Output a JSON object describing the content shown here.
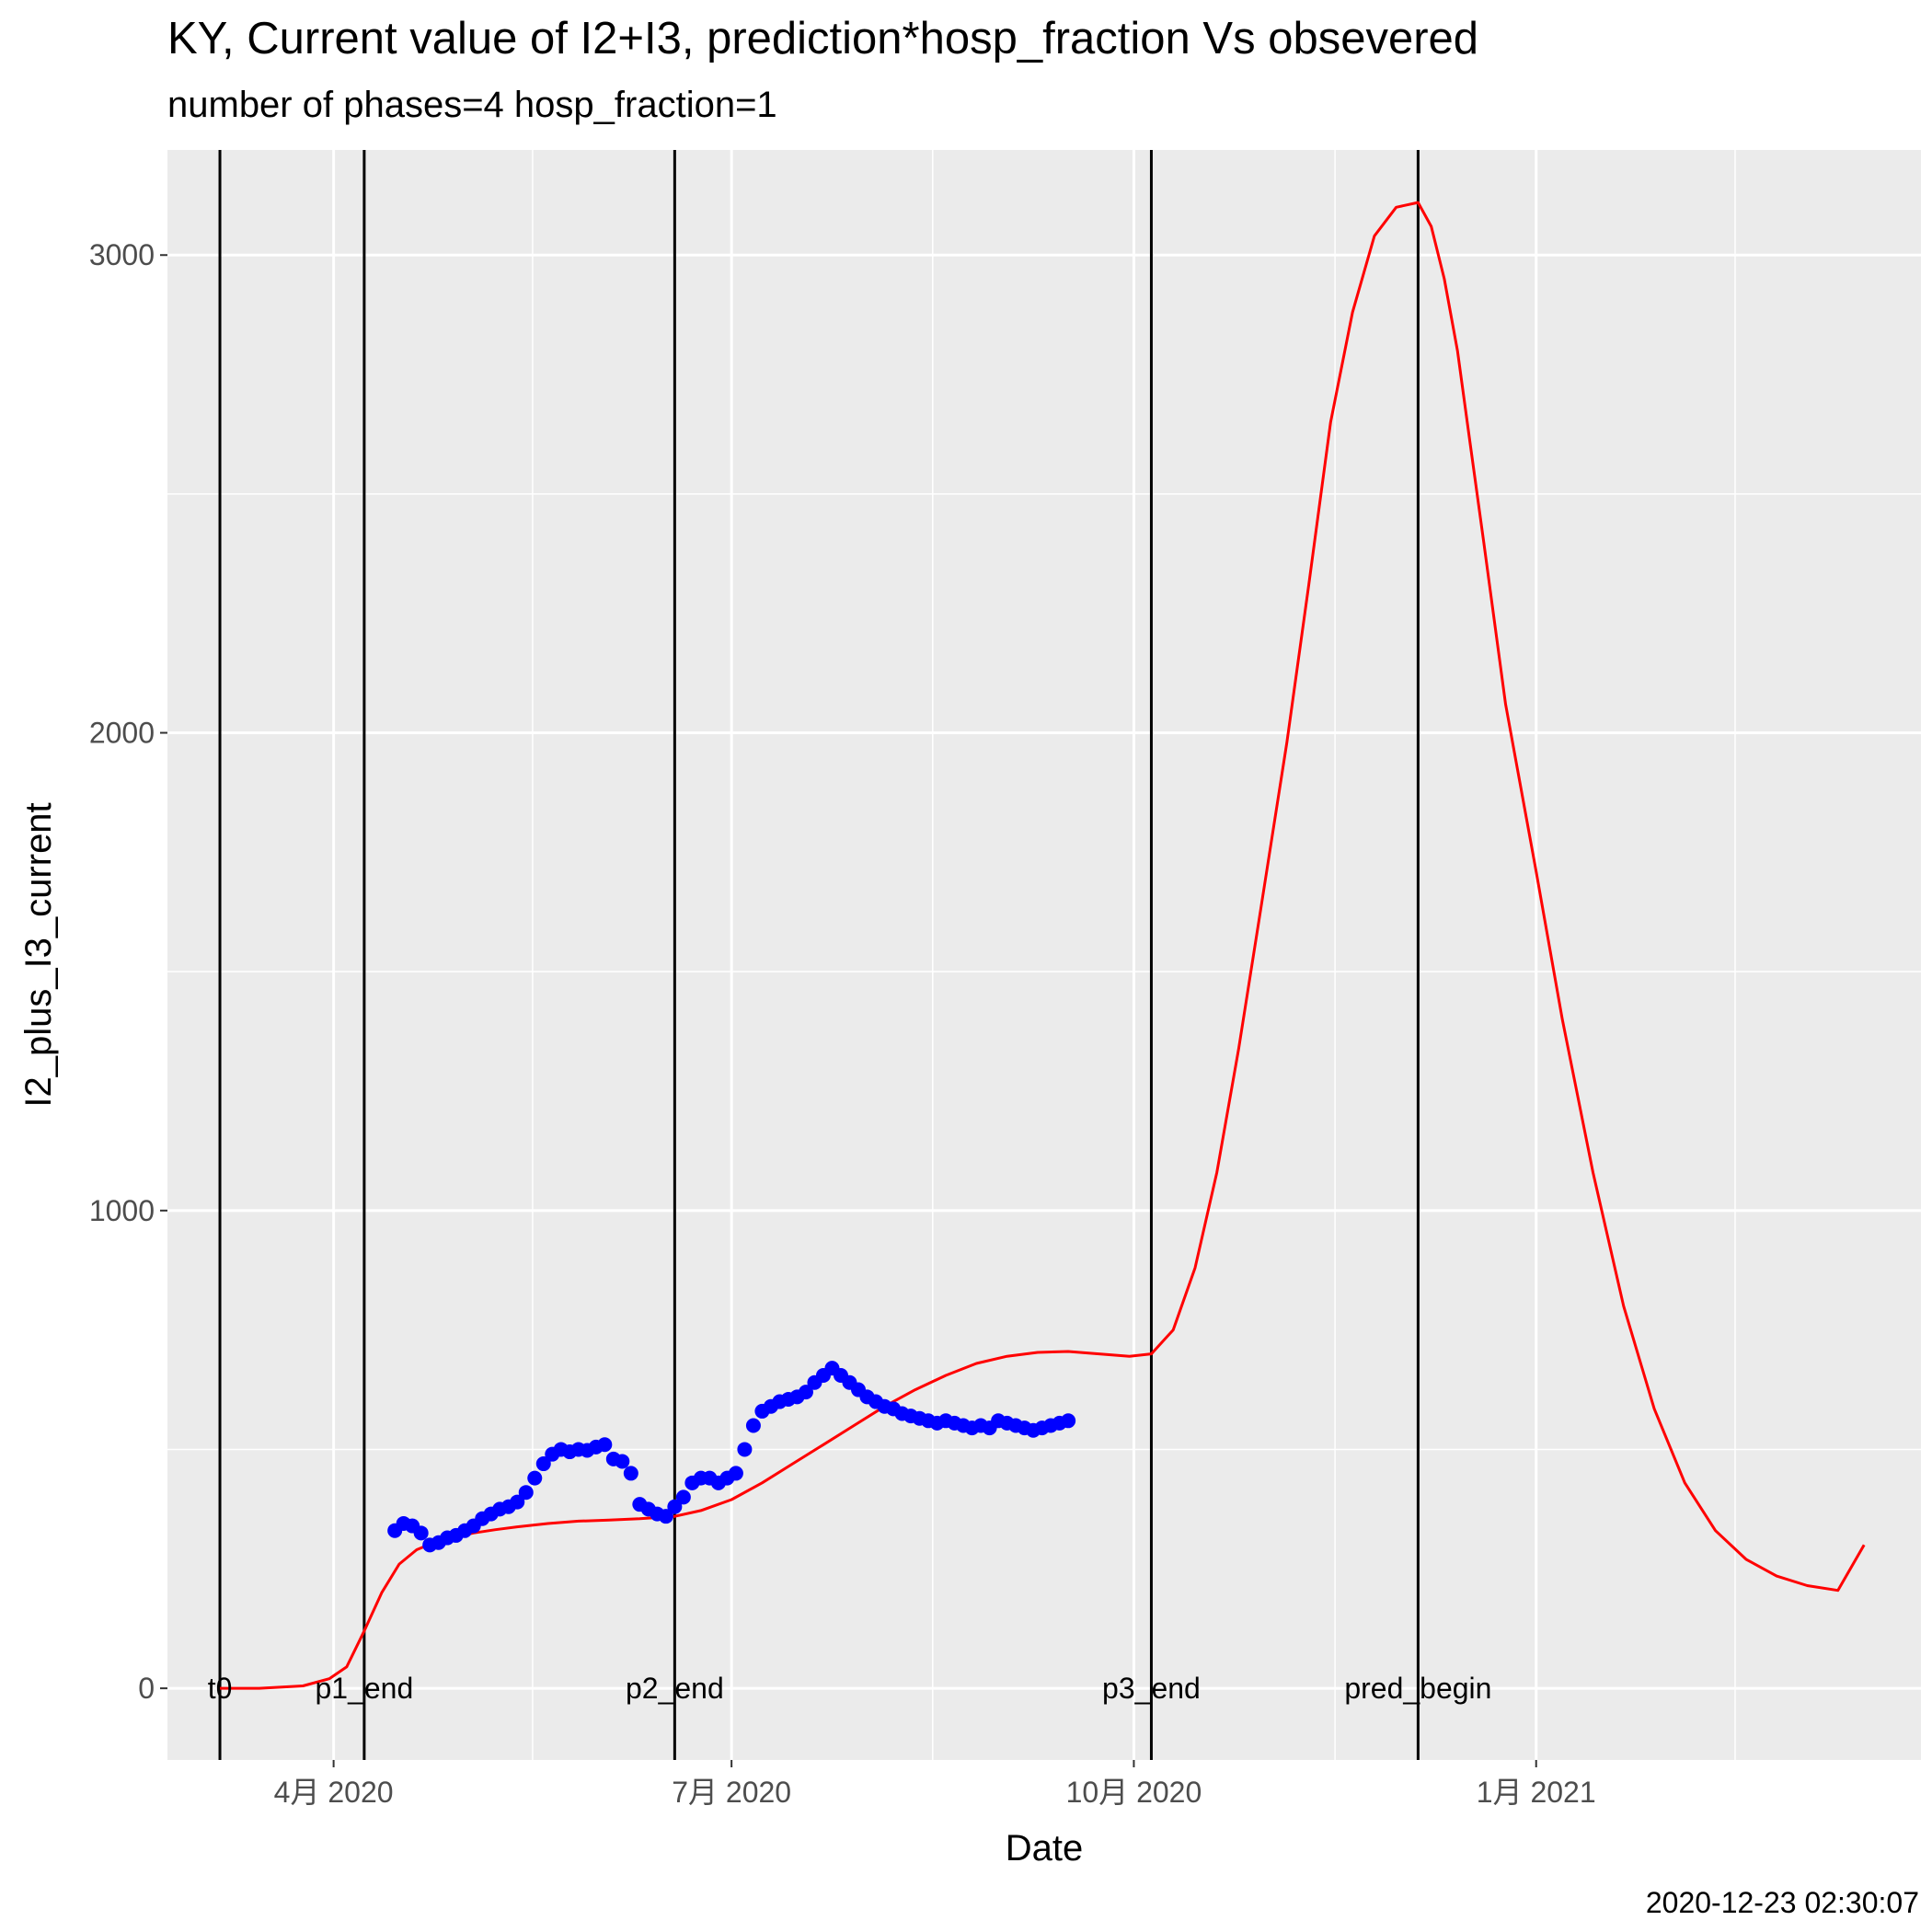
{
  "chart_data": {
    "type": "line",
    "title": "KY, Current value of I2+I3, prediction*hosp_fraction Vs obsevered",
    "subtitle": "number of phases=4   hosp_fraction=1",
    "xlabel": "Date",
    "ylabel": "I2_plus_I3_current",
    "footnote": "2020-12-23 02:30:07",
    "grid": true,
    "x_ticks": [
      {
        "date": "2020-04-01",
        "label": "4月 2020"
      },
      {
        "date": "2020-07-01",
        "label": "7月 2020"
      },
      {
        "date": "2020-10-01",
        "label": "10月 2020"
      },
      {
        "date": "2021-01-01",
        "label": "1月 2021"
      }
    ],
    "y_ticks": [
      {
        "value": 0,
        "label": "0"
      },
      {
        "value": 1000,
        "label": "1000"
      },
      {
        "value": 2000,
        "label": "2000"
      },
      {
        "value": 3000,
        "label": "3000"
      }
    ],
    "xlim": [
      "2020-02-23",
      "2021-03-30"
    ],
    "ylim": [
      -150,
      3220
    ],
    "vlines": [
      {
        "date": "2020-03-06",
        "label": "t0"
      },
      {
        "date": "2020-04-08",
        "label": "p1_end"
      },
      {
        "date": "2020-06-18",
        "label": "p2_end"
      },
      {
        "date": "2020-10-05",
        "label": "p3_end"
      },
      {
        "date": "2020-12-05",
        "label": "pred_begin"
      }
    ],
    "colors": {
      "panel": "#ebebeb",
      "grid": "#ffffff",
      "prediction": "#ff0000",
      "observed": "#0000ff",
      "vline": "#000000"
    },
    "series": [
      {
        "kind": "line",
        "color": "#ff0000",
        "x": [
          "2020-03-06",
          "2020-03-15",
          "2020-03-25",
          "2020-03-31",
          "2020-04-04",
          "2020-04-08",
          "2020-04-12",
          "2020-04-16",
          "2020-04-20",
          "2020-04-24",
          "2020-04-28",
          "2020-05-03",
          "2020-05-08",
          "2020-05-13",
          "2020-05-20",
          "2020-05-27",
          "2020-06-03",
          "2020-06-10",
          "2020-06-18",
          "2020-06-24",
          "2020-07-01",
          "2020-07-08",
          "2020-07-15",
          "2020-07-22",
          "2020-07-29",
          "2020-08-05",
          "2020-08-12",
          "2020-08-19",
          "2020-08-26",
          "2020-09-02",
          "2020-09-09",
          "2020-09-16",
          "2020-09-23",
          "2020-09-30",
          "2020-10-05",
          "2020-10-10",
          "2020-10-15",
          "2020-10-20",
          "2020-10-25",
          "2020-10-30",
          "2020-11-05",
          "2020-11-10",
          "2020-11-15",
          "2020-11-20",
          "2020-11-25",
          "2020-11-30",
          "2020-12-05",
          "2020-12-08",
          "2020-12-11",
          "2020-12-14",
          "2020-12-17",
          "2020-12-20",
          "2020-12-25",
          "2021-01-01",
          "2021-01-07",
          "2021-01-14",
          "2021-01-21",
          "2021-01-28",
          "2021-02-04",
          "2021-02-11",
          "2021-02-18",
          "2021-02-25",
          "2021-03-04",
          "2021-03-11",
          "2021-03-17"
        ],
        "y": [
          0,
          0,
          5,
          20,
          45,
          120,
          200,
          260,
          290,
          305,
          315,
          325,
          332,
          338,
          345,
          350,
          352,
          355,
          360,
          372,
          395,
          430,
          470,
          510,
          550,
          590,
          625,
          655,
          680,
          695,
          703,
          705,
          700,
          695,
          700,
          750,
          880,
          1080,
          1340,
          1630,
          1980,
          2310,
          2650,
          2880,
          3040,
          3100,
          3110,
          3060,
          2950,
          2800,
          2600,
          2400,
          2060,
          1710,
          1400,
          1080,
          800,
          585,
          430,
          330,
          270,
          235,
          215,
          205,
          300
        ]
      },
      {
        "kind": "points",
        "color": "#0000ff",
        "x": [
          "2020-04-15",
          "2020-04-17",
          "2020-04-19",
          "2020-04-21",
          "2020-04-23",
          "2020-04-25",
          "2020-04-27",
          "2020-04-29",
          "2020-05-01",
          "2020-05-03",
          "2020-05-05",
          "2020-05-07",
          "2020-05-09",
          "2020-05-11",
          "2020-05-13",
          "2020-05-15",
          "2020-05-17",
          "2020-05-19",
          "2020-05-21",
          "2020-05-23",
          "2020-05-25",
          "2020-05-27",
          "2020-05-29",
          "2020-05-31",
          "2020-06-02",
          "2020-06-04",
          "2020-06-06",
          "2020-06-08",
          "2020-06-10",
          "2020-06-12",
          "2020-06-14",
          "2020-06-16",
          "2020-06-18",
          "2020-06-20",
          "2020-06-22",
          "2020-06-24",
          "2020-06-26",
          "2020-06-28",
          "2020-06-30",
          "2020-07-02",
          "2020-07-04",
          "2020-07-06",
          "2020-07-08",
          "2020-07-10",
          "2020-07-12",
          "2020-07-14",
          "2020-07-16",
          "2020-07-18",
          "2020-07-20",
          "2020-07-22",
          "2020-07-24",
          "2020-07-26",
          "2020-07-28",
          "2020-07-30",
          "2020-08-01",
          "2020-08-03",
          "2020-08-05",
          "2020-08-07",
          "2020-08-09",
          "2020-08-11",
          "2020-08-13",
          "2020-08-15",
          "2020-08-17",
          "2020-08-19",
          "2020-08-21",
          "2020-08-23",
          "2020-08-25",
          "2020-08-27",
          "2020-08-29",
          "2020-08-31",
          "2020-09-02",
          "2020-09-04",
          "2020-09-06",
          "2020-09-08",
          "2020-09-10",
          "2020-09-12",
          "2020-09-14",
          "2020-09-16"
        ],
        "y": [
          330,
          345,
          340,
          325,
          300,
          305,
          315,
          320,
          330,
          340,
          355,
          365,
          375,
          380,
          390,
          410,
          440,
          470,
          490,
          500,
          495,
          500,
          498,
          505,
          510,
          480,
          475,
          450,
          385,
          375,
          365,
          360,
          380,
          400,
          430,
          440,
          440,
          430,
          440,
          450,
          500,
          550,
          580,
          590,
          600,
          605,
          610,
          620,
          640,
          655,
          670,
          655,
          640,
          625,
          610,
          600,
          590,
          585,
          575,
          570,
          565,
          560,
          555,
          560,
          555,
          550,
          545,
          550,
          545,
          560,
          555,
          550,
          545,
          540,
          545,
          550,
          555,
          560
        ]
      }
    ]
  }
}
